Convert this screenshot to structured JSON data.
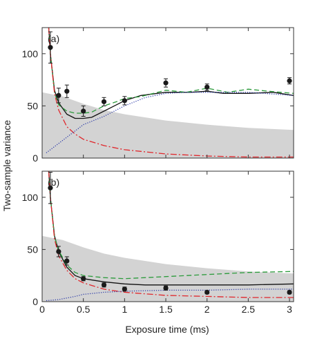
{
  "ylabel": "Two-sample variance",
  "xlabel": "Exposure time (ms)",
  "colors": {
    "band": "#d3d3d3",
    "solid": "#111111",
    "dashed": "#2a9a3a",
    "dashdot": "#e0262b",
    "dotted": "#2b3aa8",
    "points": "#1a1a1a"
  },
  "chart_data": [
    {
      "type": "line",
      "panel_label": "(a)",
      "xlim": [
        0,
        3.05
      ],
      "ylim": [
        0,
        125
      ],
      "x_ticks": [
        0,
        0.5,
        1,
        1.5,
        2,
        2.5,
        3
      ],
      "x_tick_labels": [
        "",
        "",
        "",
        "",
        "",
        "",
        ""
      ],
      "y_ticks": [
        0,
        50,
        100
      ],
      "y_tick_labels": [
        "0",
        "50",
        "100"
      ],
      "band": {
        "x": [
          0,
          0.25,
          0.5,
          0.75,
          1,
          1.5,
          2,
          2.5,
          3.05
        ],
        "upper": [
          63,
          59,
          52,
          46,
          42,
          36,
          32,
          29,
          27
        ],
        "lower": [
          0,
          0,
          0,
          0,
          0,
          0,
          0,
          0,
          0
        ]
      },
      "points": {
        "x": [
          0.1,
          0.2,
          0.3,
          0.5,
          0.75,
          1,
          1.5,
          2,
          3
        ],
        "y": [
          106,
          60,
          64,
          45,
          54,
          55,
          72,
          68,
          74
        ],
        "err": [
          15,
          7,
          6,
          5,
          4,
          4,
          4,
          3,
          3
        ]
      },
      "series": [
        {
          "style": "solid",
          "x": [
            0.08,
            0.1,
            0.15,
            0.2,
            0.3,
            0.4,
            0.5,
            0.6,
            0.75,
            0.9,
            1,
            1.2,
            1.5,
            1.8,
            2,
            2.2,
            2.5,
            2.8,
            3.05
          ],
          "y": [
            125,
            100,
            65,
            53,
            42,
            38,
            38,
            39,
            45,
            51,
            55,
            60,
            63,
            63,
            64,
            62,
            62,
            63,
            60
          ]
        },
        {
          "style": "dashed",
          "x": [
            0.08,
            0.1,
            0.15,
            0.2,
            0.3,
            0.4,
            0.5,
            0.6,
            0.75,
            0.9,
            1,
            1.2,
            1.5,
            1.75,
            2,
            2.25,
            2.5,
            2.75,
            3.05
          ],
          "y": [
            125,
            100,
            63,
            51,
            45,
            43,
            43,
            44,
            50,
            54,
            57,
            59,
            65,
            63,
            67,
            63,
            66,
            64,
            62
          ]
        },
        {
          "style": "dashdot",
          "x": [
            0.08,
            0.1,
            0.15,
            0.2,
            0.3,
            0.4,
            0.5,
            0.75,
            1,
            1.5,
            2,
            2.5,
            3.05
          ],
          "y": [
            125,
            100,
            62,
            46,
            30,
            23,
            18,
            12,
            8,
            4,
            2,
            1,
            1
          ]
        },
        {
          "style": "dotted",
          "x": [
            0.05,
            0.2,
            0.4,
            0.5,
            0.75,
            1,
            1.25,
            1.5,
            1.75,
            2,
            2.5,
            3.05
          ],
          "y": [
            5,
            14,
            26,
            32,
            40,
            50,
            58,
            62,
            63,
            63,
            63,
            60
          ]
        }
      ]
    },
    {
      "type": "line",
      "panel_label": "(b)",
      "xlim": [
        0,
        3.05
      ],
      "ylim": [
        0,
        125
      ],
      "x_ticks": [
        0,
        0.5,
        1,
        1.5,
        2,
        2.5,
        3
      ],
      "x_tick_labels": [
        "0",
        "0.5",
        "1",
        "1.5",
        "2",
        "2.5",
        "3"
      ],
      "y_ticks": [
        0,
        50,
        100
      ],
      "y_tick_labels": [
        "0",
        "50",
        "100"
      ],
      "band": {
        "x": [
          0,
          0.25,
          0.5,
          0.75,
          1,
          1.5,
          2,
          2.5,
          3.05
        ],
        "upper": [
          63,
          59,
          52,
          46,
          42,
          36,
          32,
          29,
          27
        ],
        "lower": [
          0,
          0,
          0,
          0,
          0,
          0,
          0,
          0,
          0
        ]
      },
      "points": {
        "x": [
          0.1,
          0.2,
          0.3,
          0.5,
          0.75,
          1,
          1.5,
          2,
          3
        ],
        "y": [
          109,
          48,
          39,
          22,
          16,
          12,
          13,
          9,
          9
        ],
        "err": [
          15,
          5,
          4,
          2,
          2,
          2,
          2,
          1.5,
          1.5
        ]
      },
      "series": [
        {
          "style": "solid",
          "x": [
            0.08,
            0.1,
            0.15,
            0.2,
            0.3,
            0.4,
            0.5,
            0.75,
            1,
            1.25,
            1.5,
            2,
            2.5,
            3.05
          ],
          "y": [
            125,
            100,
            63,
            48,
            33,
            25,
            22,
            19,
            17,
            16,
            16,
            16,
            16,
            17
          ]
        },
        {
          "style": "dashed",
          "x": [
            0.08,
            0.1,
            0.15,
            0.2,
            0.3,
            0.4,
            0.5,
            0.75,
            1,
            1.25,
            1.5,
            2,
            2.5,
            3.05
          ],
          "y": [
            125,
            100,
            62,
            49,
            35,
            28,
            25,
            23,
            22,
            23,
            24,
            26,
            28,
            29
          ]
        },
        {
          "style": "dashdot",
          "x": [
            0.08,
            0.1,
            0.15,
            0.2,
            0.3,
            0.4,
            0.5,
            0.75,
            1,
            1.5,
            2,
            2.5,
            3.05
          ],
          "y": [
            125,
            100,
            60,
            44,
            30,
            22,
            18,
            12,
            9,
            6,
            5,
            4,
            4
          ]
        },
        {
          "style": "dotted",
          "x": [
            0.05,
            0.2,
            0.4,
            0.5,
            0.75,
            1,
            1.5,
            2,
            2.5,
            3.05
          ],
          "y": [
            1,
            2,
            5,
            7,
            9,
            10,
            11,
            11,
            12,
            12
          ]
        }
      ]
    }
  ]
}
